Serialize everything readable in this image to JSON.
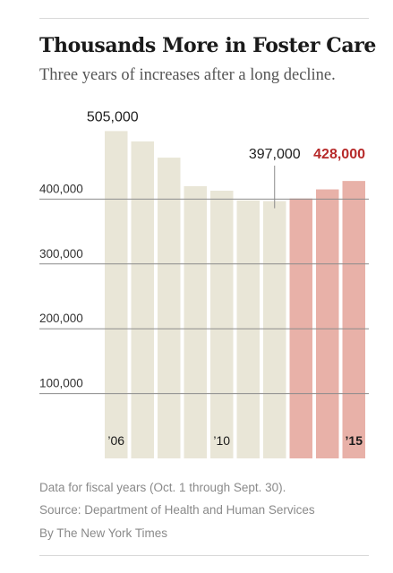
{
  "header": {
    "title": "Thousands More in Foster Care",
    "subtitle": "Three years of increases after a long decline."
  },
  "notes": {
    "data_note": "Data for fiscal years (Oct. 1 through Sept. 30).",
    "source": "Source: Department of Health and Human Services",
    "credit": "By The New York Times"
  },
  "colors": {
    "decline_bar": "#e9e6d7",
    "increase_bar": "#e8b1a8",
    "highlight_label": "#b72a2a",
    "gridline": "#8c8c8c",
    "label": "#1f1f1f"
  },
  "chart_data": {
    "type": "bar",
    "title": "Thousands More in Foster Care",
    "subtitle": "Three years of increases after a long decline.",
    "x": [
      2006,
      2007,
      2008,
      2009,
      2010,
      2011,
      2012,
      2013,
      2014,
      2015
    ],
    "values": [
      505000,
      489000,
      464000,
      420000,
      413000,
      398000,
      397000,
      401000,
      415000,
      428000
    ],
    "x_tick_labels": [
      {
        "x": 2006,
        "label": "’06"
      },
      {
        "x": 2010,
        "label": "’10"
      },
      {
        "x": 2015,
        "label": "’15"
      }
    ],
    "y_ticks": [
      {
        "value": 100000,
        "label": "100,000"
      },
      {
        "value": 200000,
        "label": "200,000"
      },
      {
        "value": 300000,
        "label": "300,000"
      },
      {
        "value": 400000,
        "label": "400,000"
      }
    ],
    "ylim": [
      0,
      530000
    ],
    "annotations": [
      {
        "x": 2006,
        "text": "505,000",
        "color": "#1f1f1f",
        "bold": false,
        "leader": false
      },
      {
        "x": 2012,
        "text": "397,000",
        "color": "#1f1f1f",
        "bold": false,
        "leader": true
      },
      {
        "x": 2015,
        "text": "428,000",
        "color": "#b72a2a",
        "bold": true,
        "leader": false
      }
    ],
    "highlight_from_x": 2013,
    "grid": true
  }
}
